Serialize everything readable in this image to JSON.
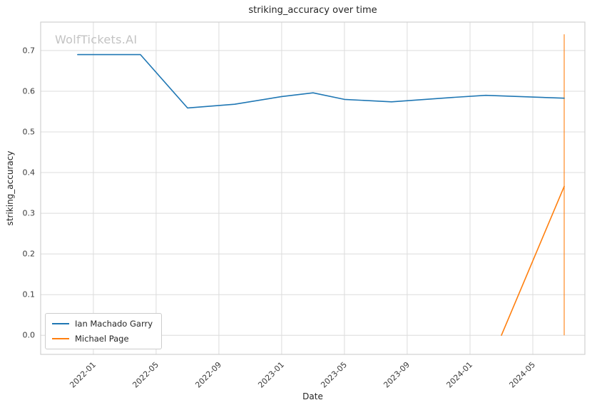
{
  "page": {
    "title": "striking_accuracy over time",
    "watermark": "WolfTickets.AI",
    "xlabel": "Date",
    "ylabel": "striking_accuracy"
  },
  "legend": {
    "items": [
      {
        "label": "Ian Machado Garry",
        "color": "#1f77b4"
      },
      {
        "label": "Michael Page",
        "color": "#ff7f0e"
      }
    ]
  },
  "chart_data": {
    "type": "line",
    "title": "striking_accuracy over time",
    "xlabel": "Date",
    "ylabel": "striking_accuracy",
    "grid": true,
    "legend_position": "lower-left",
    "xlim_decimal_years": [
      2021.72,
      2024.61
    ],
    "ylim": [
      -0.047,
      0.77
    ],
    "x_tick_labels": [
      "2022-01",
      "2022-05",
      "2022-09",
      "2023-01",
      "2023-05",
      "2023-09",
      "2024-01",
      "2024-05"
    ],
    "y_tick_labels": [
      "0.0",
      "0.1",
      "0.2",
      "0.3",
      "0.4",
      "0.5",
      "0.6",
      "0.7"
    ],
    "series": [
      {
        "name": "Ian Machado Garry",
        "color": "#1f77b4",
        "points": [
          {
            "date": "2021-12",
            "value": 0.69
          },
          {
            "date": "2022-04",
            "value": 0.69
          },
          {
            "date": "2022-07",
            "value": 0.559
          },
          {
            "date": "2022-10",
            "value": 0.568
          },
          {
            "date": "2023-01",
            "value": 0.587
          },
          {
            "date": "2023-03",
            "value": 0.596
          },
          {
            "date": "2023-05",
            "value": 0.58
          },
          {
            "date": "2023-08",
            "value": 0.574
          },
          {
            "date": "2023-12",
            "value": 0.585
          },
          {
            "date": "2024-02",
            "value": 0.59
          },
          {
            "date": "2024-07",
            "value": 0.583
          }
        ]
      },
      {
        "name": "Michael Page",
        "color": "#ff7f0e",
        "points": [
          {
            "date": "2024-03",
            "value": 0.0
          },
          {
            "date": "2024-07",
            "value": 0.366
          }
        ]
      }
    ],
    "vertical_marker": {
      "date": "2024-07",
      "from": 0.0,
      "to": 0.74,
      "color": "#ff7f0e"
    }
  }
}
